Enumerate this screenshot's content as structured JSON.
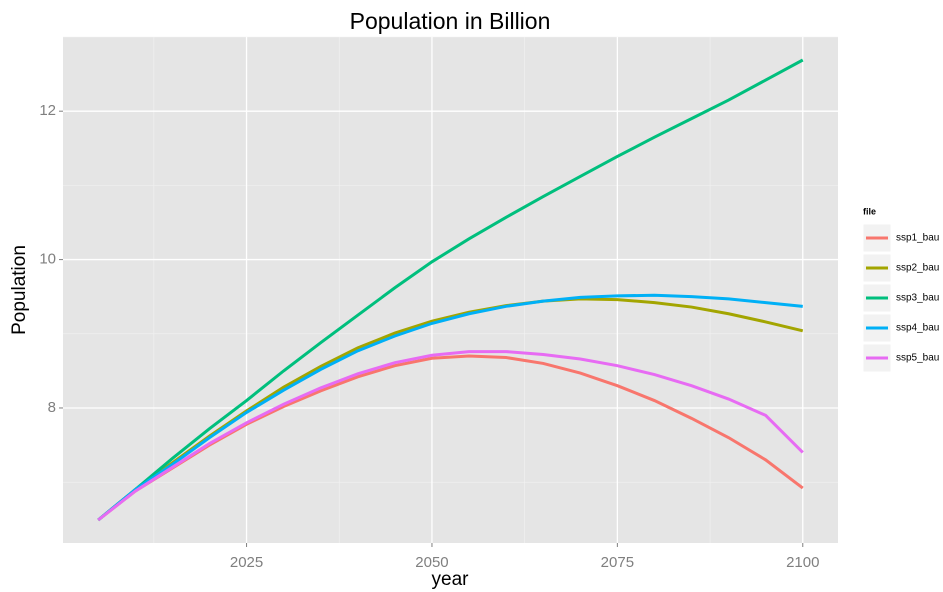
{
  "chart_data": {
    "type": "line",
    "title": "Population in Billion",
    "x_label": "year",
    "y_label": "Population",
    "x": [
      2005,
      2010,
      2015,
      2020,
      2025,
      2030,
      2035,
      2040,
      2045,
      2050,
      2055,
      2060,
      2065,
      2070,
      2075,
      2080,
      2085,
      2090,
      2095,
      2100
    ],
    "series": [
      {
        "name": "ssp1_bau",
        "color": "#f8766d",
        "values": [
          6.49,
          6.88,
          7.19,
          7.5,
          7.78,
          8.02,
          8.23,
          8.42,
          8.57,
          8.67,
          8.7,
          8.68,
          8.6,
          8.47,
          8.3,
          8.1,
          7.86,
          7.6,
          7.3,
          6.92
        ]
      },
      {
        "name": "ssp2_bau",
        "color": "#a3a500",
        "values": [
          6.49,
          6.9,
          7.26,
          7.62,
          7.96,
          8.28,
          8.56,
          8.81,
          9.01,
          9.17,
          9.29,
          9.38,
          9.44,
          9.47,
          9.46,
          9.42,
          9.36,
          9.27,
          9.16,
          9.04
        ]
      },
      {
        "name": "ssp3_bau",
        "color": "#00bf7d",
        "values": [
          6.49,
          6.9,
          7.32,
          7.72,
          8.1,
          8.5,
          8.88,
          9.25,
          9.62,
          9.97,
          10.28,
          10.57,
          10.85,
          11.12,
          11.39,
          11.65,
          11.9,
          12.15,
          12.42,
          12.69
        ]
      },
      {
        "name": "ssp4_bau",
        "color": "#00b0f6",
        "values": [
          6.49,
          6.9,
          7.24,
          7.6,
          7.94,
          8.24,
          8.52,
          8.77,
          8.97,
          9.14,
          9.27,
          9.37,
          9.44,
          9.49,
          9.51,
          9.52,
          9.5,
          9.47,
          9.42,
          9.37
        ]
      },
      {
        "name": "ssp5_bau",
        "color": "#e76bf3",
        "values": [
          6.49,
          6.88,
          7.2,
          7.52,
          7.8,
          8.05,
          8.27,
          8.46,
          8.61,
          8.71,
          8.76,
          8.76,
          8.72,
          8.66,
          8.57,
          8.45,
          8.3,
          8.12,
          7.9,
          7.4
        ]
      }
    ],
    "legend_title": "file",
    "xlim": [
      2000.25,
      2104.75
    ],
    "xticks": [
      2025,
      2050,
      2075,
      2100
    ],
    "ylim": [
      6.18,
      13.0
    ],
    "yticks": [
      8,
      10,
      12
    ],
    "grid": true
  }
}
